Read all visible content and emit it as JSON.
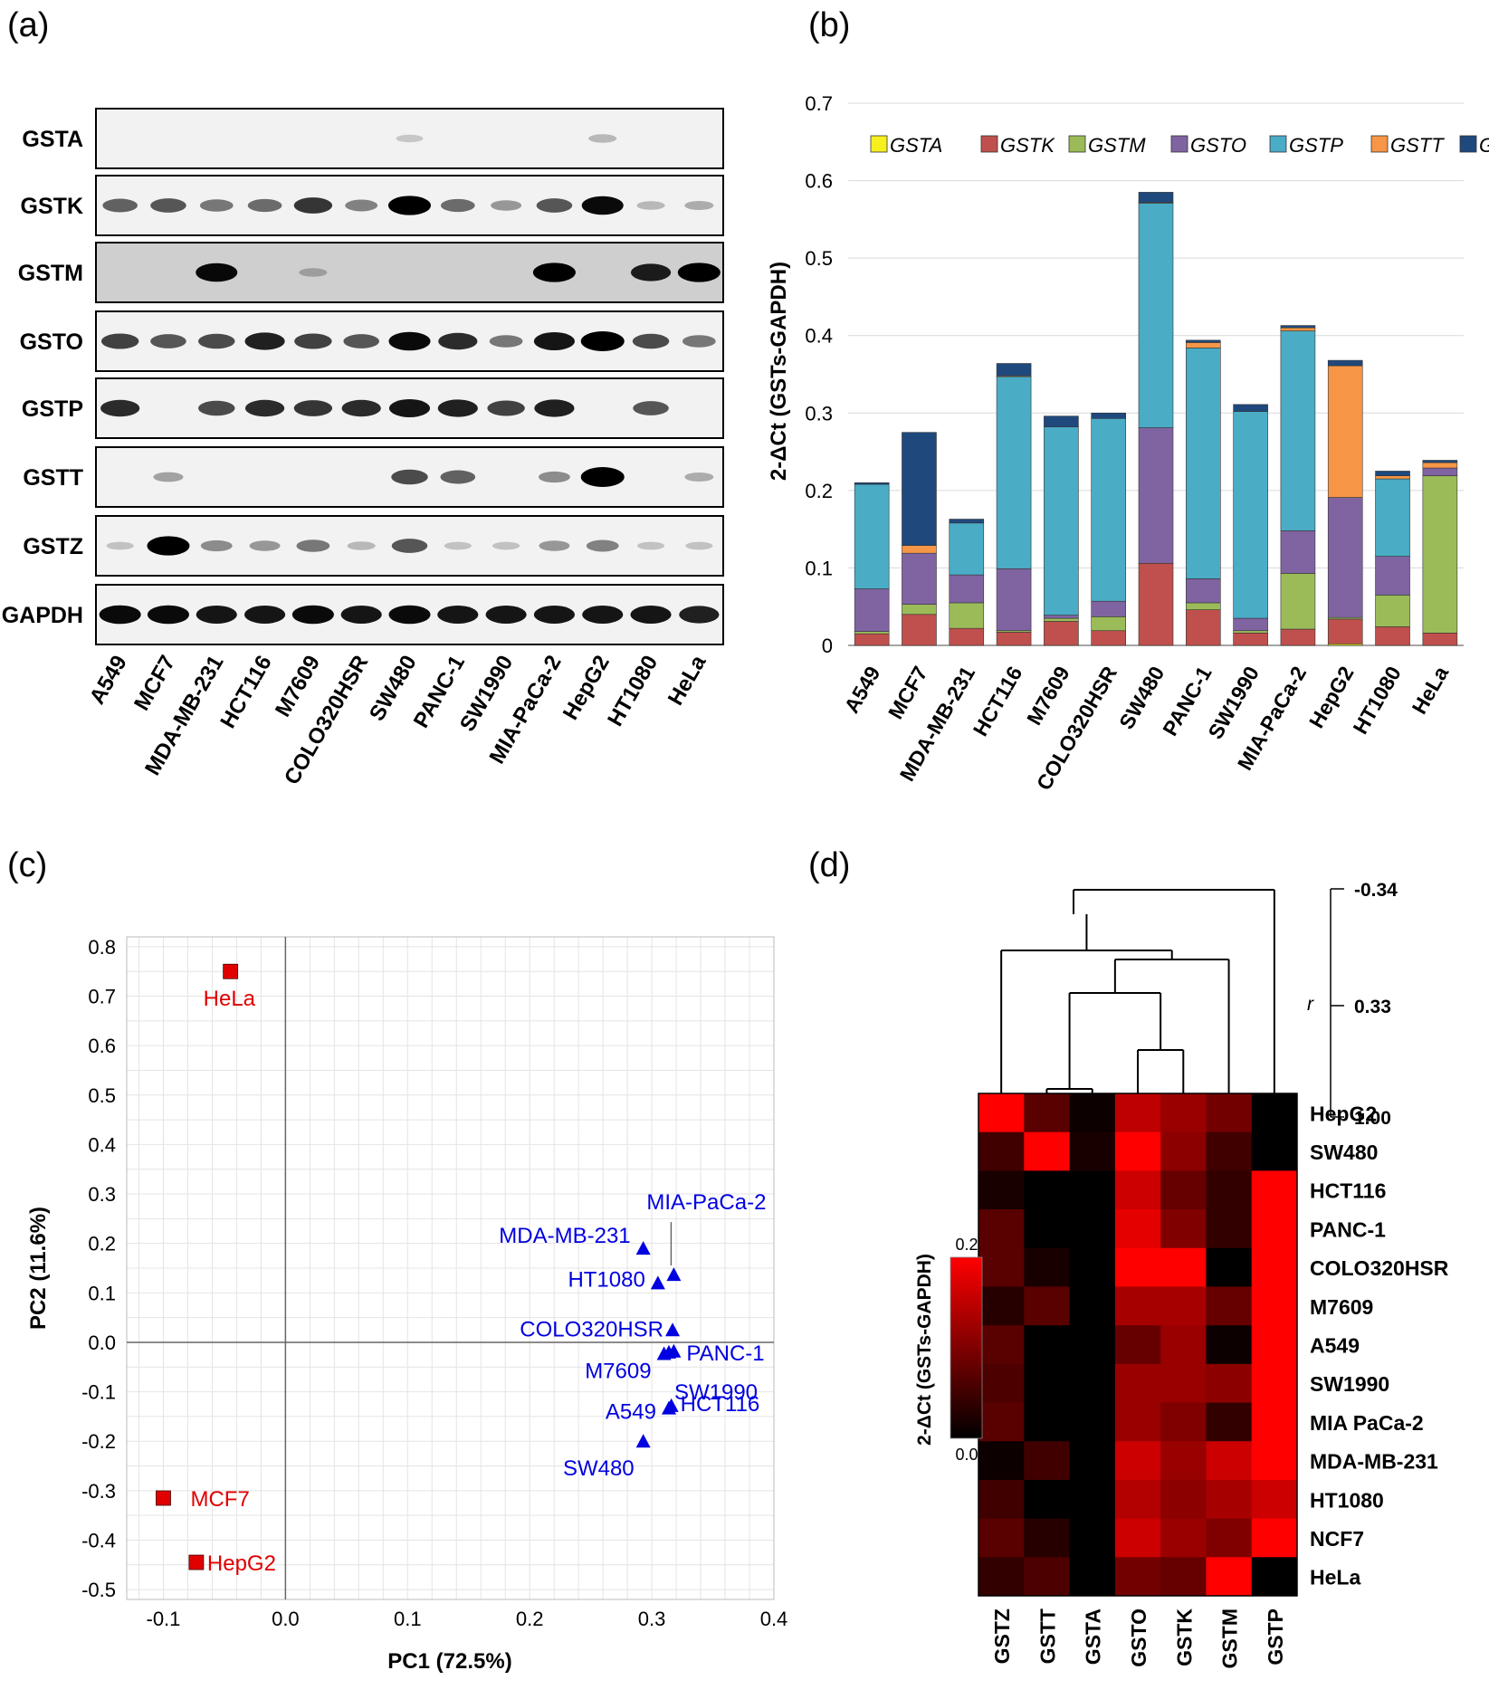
{
  "panel_labels": {
    "a": "(a)",
    "b": "(b)",
    "c": "(c)",
    "d": "(d)"
  },
  "cell_lines": [
    "A549",
    "MCF7",
    "MDA-MB-231",
    "HCT116",
    "M7609",
    "COLO320HSR",
    "SW480",
    "PANC-1",
    "SW1990",
    "MIA-PaCa-2",
    "HepG2",
    "HT1080",
    "HeLa"
  ],
  "western_blot": {
    "proteins": [
      "GSTA",
      "GSTK",
      "GSTM",
      "GSTO",
      "GSTP",
      "GSTT",
      "GSTZ",
      "GAPDH"
    ],
    "bands": [
      [
        0,
        0,
        0,
        0,
        0,
        0,
        0.03,
        0,
        0,
        0,
        0.1,
        0,
        0
      ],
      [
        0.5,
        0.55,
        0.4,
        0.45,
        0.7,
        0.35,
        0.95,
        0.45,
        0.25,
        0.55,
        0.9,
        0.1,
        0.15
      ],
      [
        0,
        0,
        0.9,
        0,
        0.1,
        0,
        0,
        0,
        0,
        0.95,
        0,
        0.8,
        0.95
      ],
      [
        0.65,
        0.55,
        0.6,
        0.8,
        0.65,
        0.55,
        0.9,
        0.75,
        0.4,
        0.85,
        1.0,
        0.6,
        0.4
      ],
      [
        0.75,
        0,
        0.6,
        0.75,
        0.7,
        0.75,
        0.85,
        0.8,
        0.65,
        0.8,
        0,
        0.55,
        0
      ],
      [
        0,
        0.2,
        0,
        0,
        0,
        0,
        0.6,
        0.5,
        0,
        0.3,
        1.0,
        0,
        0.15
      ],
      [
        0.05,
        0.95,
        0.3,
        0.25,
        0.4,
        0.1,
        0.55,
        0.05,
        0.05,
        0.25,
        0.35,
        0.05,
        0.05
      ],
      [
        0.9,
        0.9,
        0.85,
        0.85,
        0.9,
        0.85,
        0.9,
        0.85,
        0.85,
        0.85,
        0.85,
        0.85,
        0.8
      ]
    ]
  },
  "chart_data": [
    {
      "type": "bar",
      "panel": "b",
      "stacked": true,
      "ylabel": "2-ΔCt (GSTs-GAPDH)",
      "ylim": [
        0,
        0.7
      ],
      "yticks": [
        "0",
        "0.1",
        "0.2",
        "0.3",
        "0.4",
        "0.5",
        "0.6",
        "0.7"
      ],
      "categories": [
        "A549",
        "MCF7",
        "MDA-MB-231",
        "HCT116",
        "M7609",
        "COLO320HSR",
        "SW480",
        "PANC-1",
        "SW1990",
        "MIA-PaCa-2",
        "HepG2",
        "HT1080",
        "HeLa"
      ],
      "series": [
        {
          "name": "GSTA",
          "color": "#f5f01e",
          "values": [
            0,
            0,
            0,
            0,
            0,
            0,
            0,
            0,
            0,
            0,
            0.002,
            0,
            0
          ]
        },
        {
          "name": "GSTK",
          "color": "#c0504d",
          "values": [
            0.015,
            0.04,
            0.022,
            0.017,
            0.031,
            0.019,
            0.106,
            0.046,
            0.016,
            0.021,
            0.032,
            0.024,
            0.016
          ]
        },
        {
          "name": "GSTM",
          "color": "#9bbb59",
          "values": [
            0.003,
            0.013,
            0.033,
            0.002,
            0.004,
            0.018,
            0,
            0.009,
            0.003,
            0.072,
            0.002,
            0.041,
            0.203
          ]
        },
        {
          "name": "GSTO",
          "color": "#8064a2",
          "values": [
            0.055,
            0.066,
            0.036,
            0.08,
            0.004,
            0.02,
            0.175,
            0.031,
            0.016,
            0.055,
            0.155,
            0.05,
            0.01
          ]
        },
        {
          "name": "GSTP",
          "color": "#4bacc6",
          "values": [
            0.135,
            0,
            0.067,
            0.248,
            0.243,
            0.236,
            0.29,
            0.298,
            0.267,
            0.258,
            0,
            0.1,
            0
          ]
        },
        {
          "name": "GSTT",
          "color": "#f79646",
          "values": [
            0,
            0.01,
            0,
            0.001,
            0,
            0,
            0.001,
            0.007,
            0,
            0.004,
            0.17,
            0.004,
            0.007
          ]
        },
        {
          "name": "GSTZ",
          "color": "#1f497d",
          "values": [
            0.002,
            0.146,
            0.005,
            0.016,
            0.014,
            0.007,
            0.013,
            0.003,
            0.009,
            0.003,
            0.007,
            0.006,
            0.003
          ]
        }
      ]
    },
    {
      "type": "scatter",
      "panel": "c",
      "xlabel": "PC1 (72.5%)",
      "ylabel": "PC2 (11.6%)",
      "xlim": [
        -0.13,
        0.4
      ],
      "ylim": [
        -0.52,
        0.82
      ],
      "xticks": [
        "-0.1",
        "0.0",
        "0.1",
        "0.2",
        "0.3",
        "0.4"
      ],
      "yticks": [
        "0.8",
        "0.7",
        "0.6",
        "0.5",
        "0.4",
        "0.3",
        "0.2",
        "0.1",
        "0.0",
        "-0.1",
        "-0.2",
        "-0.3",
        "-0.4",
        "-0.5"
      ],
      "grid": true,
      "points": [
        {
          "label": "HeLa",
          "x": -0.045,
          "y": 0.75,
          "group": "red"
        },
        {
          "label": "MCF7",
          "x": -0.1,
          "y": -0.315,
          "group": "red"
        },
        {
          "label": "HepG2",
          "x": -0.073,
          "y": -0.445,
          "group": "red"
        },
        {
          "label": "MIA-PaCa-2",
          "x": 0.318,
          "y": 0.137,
          "group": "blue"
        },
        {
          "label": "MDA-MB-231",
          "x": 0.293,
          "y": 0.19,
          "group": "blue"
        },
        {
          "label": "HT1080",
          "x": 0.305,
          "y": 0.12,
          "group": "blue"
        },
        {
          "label": "COLO320HSR",
          "x": 0.317,
          "y": 0.025,
          "group": "blue"
        },
        {
          "label": "PANC-1",
          "x": 0.318,
          "y": -0.018,
          "group": "blue"
        },
        {
          "label": "M7609",
          "x": 0.31,
          "y": -0.023,
          "group": "blue"
        },
        {
          "label": "SW1990",
          "x": 0.314,
          "y": -0.02,
          "group": "blue"
        },
        {
          "label": "HCT116",
          "x": 0.316,
          "y": -0.128,
          "group": "blue"
        },
        {
          "label": "A549",
          "x": 0.314,
          "y": -0.133,
          "group": "blue"
        },
        {
          "label": "SW480",
          "x": 0.293,
          "y": -0.2,
          "group": "blue"
        }
      ]
    },
    {
      "type": "heatmap",
      "panel": "d",
      "columns": [
        "GSTZ",
        "GSTT",
        "GSTA",
        "GSTO",
        "GSTK",
        "GSTM",
        "GSTP"
      ],
      "rows": [
        "HepG2",
        "SW480",
        "HCT116",
        "PANC-1",
        "COLO320HSR",
        "M7609",
        "A549",
        "SW1990",
        "MIA PaCa-2",
        "MDA-MB-231",
        "HT1080",
        "NCF7",
        "HeLa"
      ],
      "values": [
        [
          0.2,
          0.07,
          0.01,
          0.15,
          0.12,
          0.09,
          0.0
        ],
        [
          0.05,
          0.2,
          0.02,
          0.2,
          0.11,
          0.05,
          0.0
        ],
        [
          0.02,
          0.0,
          0.0,
          0.16,
          0.08,
          0.04,
          0.2
        ],
        [
          0.07,
          0.0,
          0.0,
          0.18,
          0.1,
          0.04,
          0.2
        ],
        [
          0.07,
          0.02,
          0.0,
          0.2,
          0.2,
          0.0,
          0.2
        ],
        [
          0.03,
          0.07,
          0.0,
          0.13,
          0.13,
          0.08,
          0.2
        ],
        [
          0.07,
          0.0,
          0.0,
          0.08,
          0.12,
          0.01,
          0.2
        ],
        [
          0.06,
          0.0,
          0.0,
          0.12,
          0.12,
          0.11,
          0.2
        ],
        [
          0.07,
          0.0,
          0.0,
          0.12,
          0.1,
          0.04,
          0.2
        ],
        [
          0.01,
          0.05,
          0.0,
          0.16,
          0.12,
          0.16,
          0.2
        ],
        [
          0.05,
          0.0,
          0.0,
          0.14,
          0.11,
          0.13,
          0.16
        ],
        [
          0.07,
          0.03,
          0.0,
          0.16,
          0.12,
          0.1,
          0.2
        ],
        [
          0.04,
          0.06,
          0.0,
          0.09,
          0.08,
          0.2,
          0.0
        ]
      ],
      "colorbar": {
        "label": "2-ΔCt (GSTs-GAPDH)",
        "min_label": "0.0",
        "max_label": "0.2",
        "min_color": "#000000",
        "max_color": "#ff0000"
      },
      "dendrogram": {
        "scale_label": "r",
        "ticks": [
          "-0.34",
          "0.33",
          "1.00"
        ]
      }
    }
  ]
}
